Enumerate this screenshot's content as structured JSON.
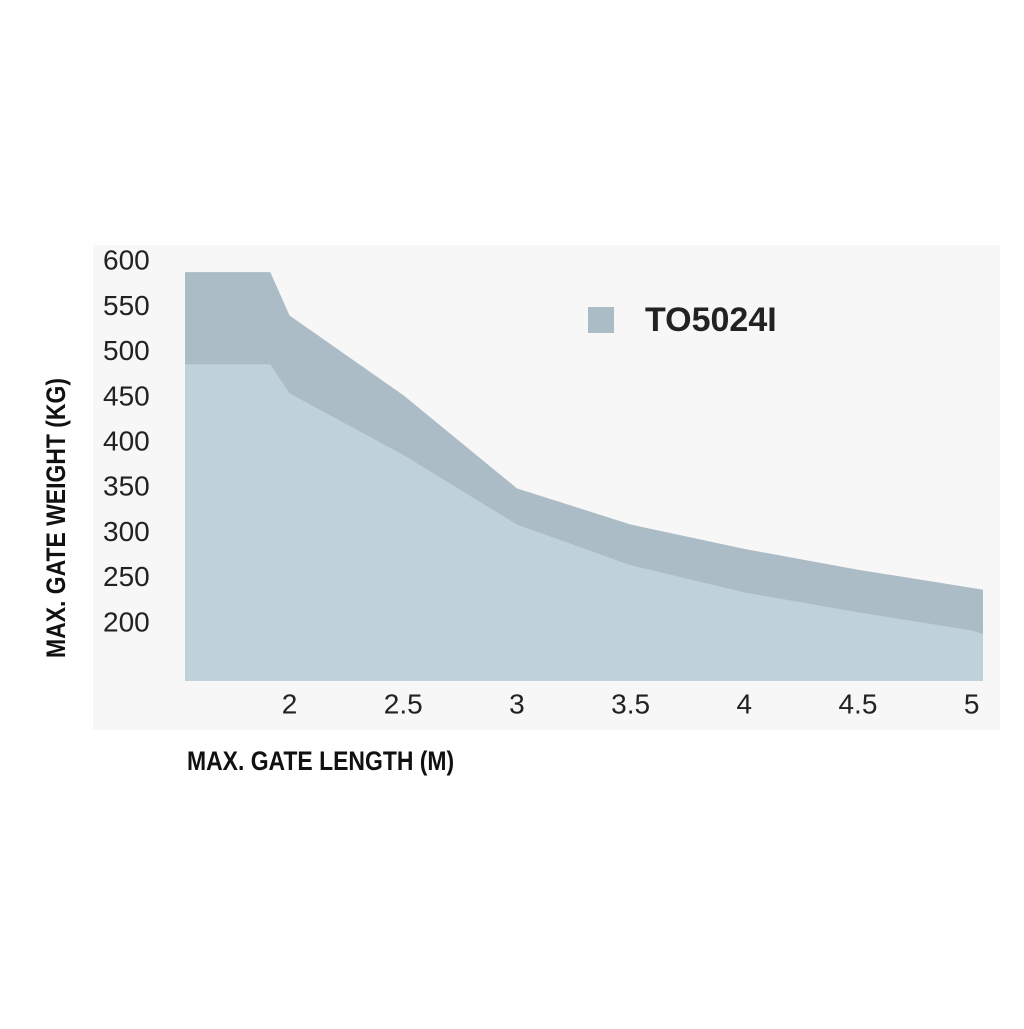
{
  "chart_data": {
    "type": "area",
    "x_label": "MAX. GATE LENGTH (M)",
    "y_label": "MAX. GATE WEIGHT (KG)",
    "x": [
      1.54,
      1.915,
      2,
      2.5,
      3,
      3.5,
      4,
      4.5,
      5,
      5.05
    ],
    "series": [
      {
        "name": "TO5024I",
        "color": "#abbcc6",
        "values": [
          589,
          589,
          541,
          453,
          350,
          310,
          283,
          260,
          240,
          238
        ]
      },
      {
        "color": "#bfd1db",
        "values": [
          487,
          487,
          455,
          387,
          310,
          265,
          235,
          213,
          193,
          189
        ]
      }
    ],
    "xlim": [
      1.54,
      5.05
    ],
    "ylim": [
      137,
      619
    ],
    "xticks": [
      2,
      2.5,
      3,
      3.5,
      4,
      4.5,
      5
    ],
    "yticks": [
      200,
      250,
      300,
      350,
      400,
      450,
      500,
      550,
      600
    ],
    "legend": "top-right"
  }
}
